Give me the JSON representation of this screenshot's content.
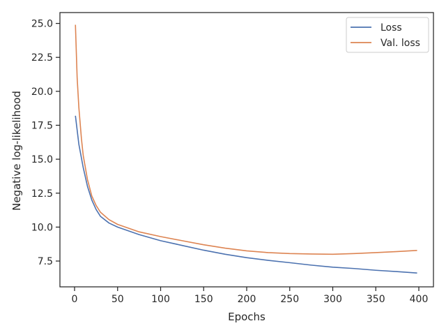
{
  "chart_data": {
    "type": "line",
    "xlabel": "Epochs",
    "ylabel": "Negative log-likelihood",
    "xlim": [
      -17,
      417
    ],
    "ylim": [
      5.6,
      25.8
    ],
    "x_ticks": [
      0,
      50,
      100,
      150,
      200,
      250,
      300,
      350,
      400
    ],
    "y_ticks": [
      7.5,
      10.0,
      12.5,
      15.0,
      17.5,
      20.0,
      22.5,
      25.0
    ],
    "x_tick_labels": [
      "0",
      "50",
      "100",
      "150",
      "200",
      "250",
      "300",
      "350",
      "400"
    ],
    "y_tick_labels": [
      "7.5",
      "10.0",
      "12.5",
      "15.0",
      "17.5",
      "20.0",
      "22.5",
      "25.0"
    ],
    "grid": false,
    "legend_position": "top-right",
    "series": [
      {
        "name": "Loss",
        "color": "#4c72b0",
        "x": [
          1,
          5,
          10,
          15,
          20,
          25,
          30,
          40,
          50,
          75,
          100,
          125,
          150,
          175,
          200,
          225,
          250,
          275,
          300,
          325,
          350,
          375,
          398
        ],
        "y": [
          18.2,
          16.1,
          14.4,
          13.0,
          12.0,
          11.3,
          10.8,
          10.3,
          10.0,
          9.45,
          9.0,
          8.65,
          8.3,
          8.0,
          7.75,
          7.55,
          7.38,
          7.2,
          7.05,
          6.95,
          6.82,
          6.72,
          6.62
        ]
      },
      {
        "name": "Val. loss",
        "color": "#dd8452",
        "x": [
          1,
          3,
          5,
          8,
          10,
          15,
          20,
          25,
          30,
          40,
          50,
          75,
          100,
          125,
          150,
          175,
          200,
          225,
          250,
          275,
          300,
          325,
          350,
          375,
          398
        ],
        "y": [
          24.9,
          21.0,
          18.8,
          16.5,
          15.3,
          13.5,
          12.3,
          11.6,
          11.1,
          10.55,
          10.2,
          9.65,
          9.3,
          9.0,
          8.7,
          8.45,
          8.25,
          8.12,
          8.05,
          8.02,
          8.0,
          8.05,
          8.12,
          8.2,
          8.28
        ]
      }
    ]
  }
}
